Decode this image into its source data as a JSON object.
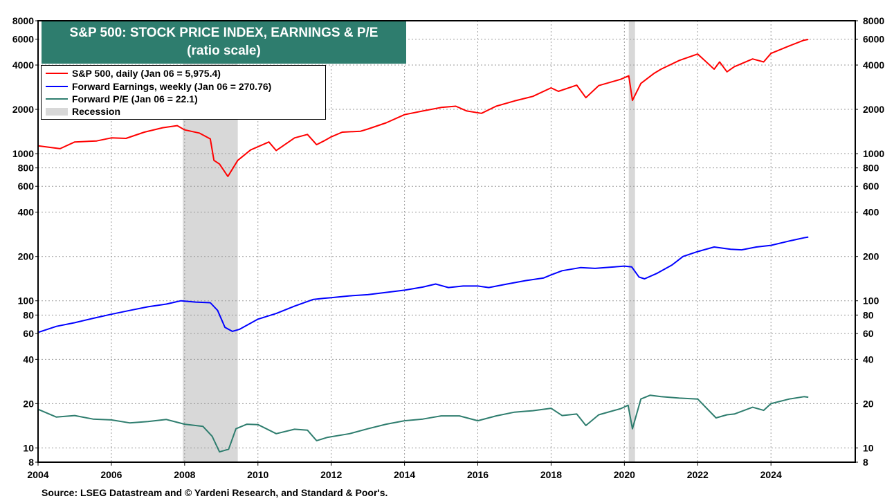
{
  "chart_data": {
    "type": "line",
    "title": "S&P 500: STOCK PRICE INDEX, EARNINGS & P/E",
    "subtitle": "(ratio scale)",
    "y_scale": "log",
    "ylim": [
      8,
      8000
    ],
    "xlim": [
      2004,
      2026.3
    ],
    "y_ticks": [
      8,
      10,
      20,
      40,
      60,
      80,
      100,
      200,
      400,
      600,
      800,
      1000,
      2000,
      4000,
      6000,
      8000
    ],
    "y_tick_labels": [
      "8",
      "10",
      "20",
      "40",
      "60",
      "80",
      "100",
      "200",
      "400",
      "600",
      "800",
      "1000",
      "2000",
      "4000",
      "6000",
      "8000"
    ],
    "x_ticks": [
      2004,
      2006,
      2008,
      2010,
      2012,
      2014,
      2016,
      2018,
      2020,
      2022,
      2024
    ],
    "x_tick_labels": [
      "2004",
      "2006",
      "2008",
      "2010",
      "2012",
      "2014",
      "2016",
      "2018",
      "2020",
      "2022",
      "2024"
    ],
    "grid": true,
    "legend_position": "top-left",
    "recessions": [
      {
        "start": 2007.95,
        "end": 2009.45
      },
      {
        "start": 2020.12,
        "end": 2020.29
      }
    ],
    "series": [
      {
        "name": "S&P 500, daily (Jan 06 = 5,975.4)",
        "color": "#ff0000",
        "points": [
          [
            2004.0,
            1130
          ],
          [
            2004.6,
            1080
          ],
          [
            2005.0,
            1200
          ],
          [
            2005.6,
            1220
          ],
          [
            2006.0,
            1280
          ],
          [
            2006.4,
            1270
          ],
          [
            2006.9,
            1400
          ],
          [
            2007.4,
            1500
          ],
          [
            2007.8,
            1550
          ],
          [
            2008.0,
            1450
          ],
          [
            2008.4,
            1380
          ],
          [
            2008.7,
            1260
          ],
          [
            2008.8,
            900
          ],
          [
            2008.95,
            850
          ],
          [
            2009.18,
            700
          ],
          [
            2009.45,
            900
          ],
          [
            2009.8,
            1060
          ],
          [
            2010.3,
            1200
          ],
          [
            2010.5,
            1050
          ],
          [
            2011.0,
            1280
          ],
          [
            2011.35,
            1350
          ],
          [
            2011.6,
            1150
          ],
          [
            2011.8,
            1220
          ],
          [
            2012.0,
            1300
          ],
          [
            2012.3,
            1400
          ],
          [
            2012.8,
            1420
          ],
          [
            2013.0,
            1470
          ],
          [
            2013.5,
            1620
          ],
          [
            2014.0,
            1840
          ],
          [
            2014.5,
            1950
          ],
          [
            2015.0,
            2060
          ],
          [
            2015.4,
            2100
          ],
          [
            2015.7,
            1950
          ],
          [
            2016.1,
            1880
          ],
          [
            2016.5,
            2100
          ],
          [
            2017.0,
            2280
          ],
          [
            2017.5,
            2450
          ],
          [
            2018.0,
            2800
          ],
          [
            2018.2,
            2650
          ],
          [
            2018.7,
            2920
          ],
          [
            2018.95,
            2400
          ],
          [
            2019.3,
            2900
          ],
          [
            2019.9,
            3200
          ],
          [
            2020.12,
            3380
          ],
          [
            2020.22,
            2300
          ],
          [
            2020.45,
            3000
          ],
          [
            2020.8,
            3500
          ],
          [
            2021.0,
            3750
          ],
          [
            2021.5,
            4300
          ],
          [
            2022.0,
            4750
          ],
          [
            2022.45,
            3750
          ],
          [
            2022.6,
            4200
          ],
          [
            2022.8,
            3600
          ],
          [
            2023.0,
            3900
          ],
          [
            2023.5,
            4400
          ],
          [
            2023.8,
            4200
          ],
          [
            2024.0,
            4800
          ],
          [
            2024.5,
            5400
          ],
          [
            2024.9,
            5900
          ],
          [
            2025.02,
            5975
          ]
        ]
      },
      {
        "name": "Forward Earnings, weekly (Jan 06 = 270.76)",
        "color": "#0000ff",
        "points": [
          [
            2004.0,
            61
          ],
          [
            2004.5,
            67
          ],
          [
            2005.0,
            71
          ],
          [
            2005.5,
            76
          ],
          [
            2006.0,
            81
          ],
          [
            2006.5,
            86
          ],
          [
            2007.0,
            91
          ],
          [
            2007.5,
            95
          ],
          [
            2007.9,
            100
          ],
          [
            2008.3,
            98
          ],
          [
            2008.7,
            97
          ],
          [
            2008.9,
            86
          ],
          [
            2009.1,
            66
          ],
          [
            2009.3,
            62
          ],
          [
            2009.5,
            64
          ],
          [
            2010.0,
            75
          ],
          [
            2010.5,
            82
          ],
          [
            2011.0,
            92
          ],
          [
            2011.5,
            102
          ],
          [
            2011.8,
            104
          ],
          [
            2012.0,
            105
          ],
          [
            2012.5,
            108
          ],
          [
            2013.0,
            110
          ],
          [
            2013.5,
            114
          ],
          [
            2014.0,
            118
          ],
          [
            2014.5,
            124
          ],
          [
            2014.85,
            130
          ],
          [
            2015.2,
            123
          ],
          [
            2015.6,
            126
          ],
          [
            2016.0,
            126
          ],
          [
            2016.3,
            123
          ],
          [
            2016.8,
            130
          ],
          [
            2017.3,
            137
          ],
          [
            2017.8,
            143
          ],
          [
            2018.0,
            150
          ],
          [
            2018.3,
            160
          ],
          [
            2018.8,
            168
          ],
          [
            2019.2,
            166
          ],
          [
            2019.6,
            169
          ],
          [
            2020.0,
            172
          ],
          [
            2020.2,
            170
          ],
          [
            2020.4,
            145
          ],
          [
            2020.55,
            141
          ],
          [
            2020.9,
            154
          ],
          [
            2021.3,
            175
          ],
          [
            2021.6,
            200
          ],
          [
            2022.0,
            216
          ],
          [
            2022.45,
            232
          ],
          [
            2022.9,
            224
          ],
          [
            2023.2,
            222
          ],
          [
            2023.6,
            232
          ],
          [
            2024.0,
            238
          ],
          [
            2024.5,
            255
          ],
          [
            2024.9,
            268
          ],
          [
            2025.02,
            271
          ]
        ]
      },
      {
        "name": "Forward P/E (Jan 06 = 22.1)",
        "color": "#2e7d6e",
        "points": [
          [
            2004.0,
            18.3
          ],
          [
            2004.5,
            16.2
          ],
          [
            2005.0,
            16.6
          ],
          [
            2005.5,
            15.7
          ],
          [
            2006.0,
            15.5
          ],
          [
            2006.5,
            14.8
          ],
          [
            2007.0,
            15.1
          ],
          [
            2007.5,
            15.6
          ],
          [
            2008.0,
            14.5
          ],
          [
            2008.5,
            14.0
          ],
          [
            2008.75,
            12.0
          ],
          [
            2008.95,
            9.4
          ],
          [
            2009.2,
            9.8
          ],
          [
            2009.4,
            13.5
          ],
          [
            2009.7,
            14.5
          ],
          [
            2010.0,
            14.4
          ],
          [
            2010.5,
            12.5
          ],
          [
            2011.0,
            13.4
          ],
          [
            2011.35,
            13.2
          ],
          [
            2011.6,
            11.2
          ],
          [
            2011.9,
            11.8
          ],
          [
            2012.5,
            12.5
          ],
          [
            2013.0,
            13.5
          ],
          [
            2013.5,
            14.5
          ],
          [
            2014.0,
            15.3
          ],
          [
            2014.5,
            15.7
          ],
          [
            2015.0,
            16.5
          ],
          [
            2015.5,
            16.5
          ],
          [
            2016.0,
            15.3
          ],
          [
            2016.5,
            16.5
          ],
          [
            2017.0,
            17.5
          ],
          [
            2017.5,
            17.9
          ],
          [
            2018.0,
            18.6
          ],
          [
            2018.3,
            16.6
          ],
          [
            2018.7,
            17.0
          ],
          [
            2018.95,
            14.2
          ],
          [
            2019.3,
            16.8
          ],
          [
            2019.9,
            18.5
          ],
          [
            2020.1,
            19.5
          ],
          [
            2020.22,
            13.5
          ],
          [
            2020.45,
            21.5
          ],
          [
            2020.7,
            22.8
          ],
          [
            2021.0,
            22.3
          ],
          [
            2021.5,
            21.8
          ],
          [
            2022.0,
            21.5
          ],
          [
            2022.5,
            16.0
          ],
          [
            2022.8,
            16.8
          ],
          [
            2023.0,
            17.0
          ],
          [
            2023.5,
            18.9
          ],
          [
            2023.8,
            18.0
          ],
          [
            2024.0,
            20.0
          ],
          [
            2024.5,
            21.5
          ],
          [
            2024.9,
            22.3
          ],
          [
            2025.02,
            22.1
          ]
        ]
      }
    ],
    "legend_entries": [
      {
        "label": "S&P 500, daily (Jan 06 = 5,975.4)",
        "color": "#ff0000",
        "kind": "line"
      },
      {
        "label": "Forward Earnings, weekly (Jan 06 = 270.76)",
        "color": "#0000ff",
        "kind": "line"
      },
      {
        "label": "Forward P/E (Jan 06 = 22.1)",
        "color": "#2e7d6e",
        "kind": "line"
      },
      {
        "label": "Recession",
        "color": "#d8d8d8",
        "kind": "box"
      }
    ],
    "source": "Source: LSEG Datastream and © Yardeni Research, and Standard & Poor's."
  }
}
